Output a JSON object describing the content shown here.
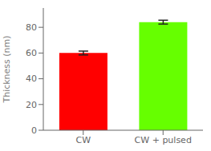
{
  "chart_data": {
    "type": "bar",
    "ylabel": "Thickness (nm)",
    "categories": [
      "CW",
      "CW + pulsed"
    ],
    "values": [
      60,
      84
    ],
    "errors": [
      1.5,
      1.5
    ],
    "colors": [
      "#ff0000",
      "#66ff00"
    ],
    "ylim": [
      0,
      95
    ],
    "yticks": [
      0,
      20,
      40,
      60,
      80
    ],
    "grid": false
  }
}
